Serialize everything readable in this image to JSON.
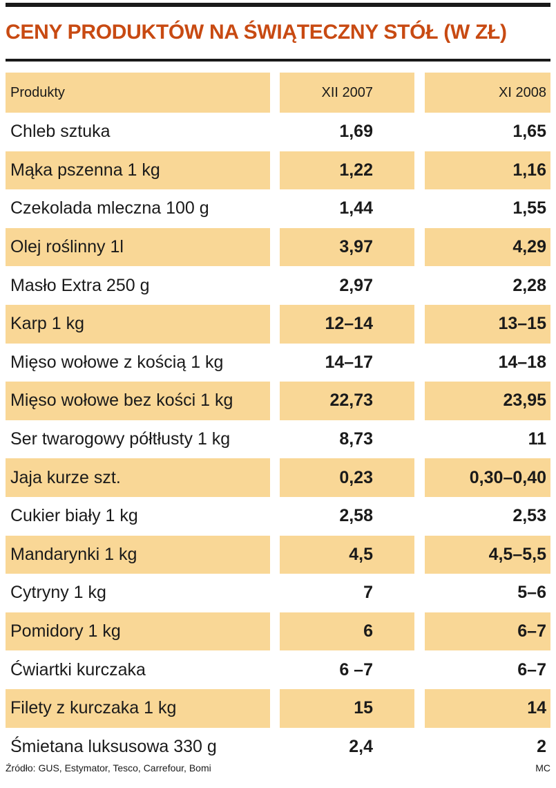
{
  "title": "CENY PRODUKTÓW NA ŚWIĄTECZNY STÓŁ (W ZŁ)",
  "header": [
    "Produkty",
    "XII 2007",
    "XI 2008"
  ],
  "rows": [
    [
      "Chleb sztuka",
      "1,69",
      "1,65"
    ],
    [
      "Mąka pszenna 1 kg",
      "1,22",
      "1,16"
    ],
    [
      "Czekolada mleczna 100 g",
      "1,44",
      "1,55"
    ],
    [
      "Olej roślinny 1l",
      "3,97",
      "4,29"
    ],
    [
      "Masło Extra 250 g",
      "2,97",
      "2,28"
    ],
    [
      "Karp 1 kg",
      "12–14",
      "13–15"
    ],
    [
      "Mięso wołowe z kością 1 kg",
      "14–17",
      "14–18"
    ],
    [
      "Mięso wołowe bez kości 1 kg",
      "22,73",
      "23,95"
    ],
    [
      "Ser twarogowy półtłusty 1 kg",
      "8,73",
      "11"
    ],
    [
      "Jaja kurze szt.",
      "0,23",
      "0,30–0,40"
    ],
    [
      "Cukier biały 1 kg",
      "2,58",
      "2,53"
    ],
    [
      "Mandarynki 1 kg",
      "4,5",
      "4,5–5,5"
    ],
    [
      "Cytryny 1 kg",
      "7",
      "5–6"
    ],
    [
      "Pomidory 1 kg",
      "6",
      "6–7"
    ],
    [
      "Ćwiartki kurczaka",
      "6 –7",
      "6–7"
    ],
    [
      "Filety z kurczaka 1 kg",
      "15",
      "14"
    ],
    [
      "Śmietana luksusowa 330 g",
      "2,4",
      "2"
    ]
  ],
  "source": "Źródło: GUS, Estymator, Tesco, Carrefour, Bomi",
  "credit": "MC",
  "colors": {
    "title": "#c84a12",
    "shade": "#f9d796",
    "rule": "#1a1a1a"
  },
  "chart_data": {
    "type": "table",
    "title": "CENY PRODUKTÓW NA ŚWIĄTECZNY STÓŁ (W ZŁ)",
    "columns": [
      "Produkty",
      "XII 2007",
      "XI 2008"
    ],
    "rows": [
      [
        "Chleb sztuka",
        "1,69",
        "1,65"
      ],
      [
        "Mąka pszenna 1 kg",
        "1,22",
        "1,16"
      ],
      [
        "Czekolada mleczna 100 g",
        "1,44",
        "1,55"
      ],
      [
        "Olej roślinny 1l",
        "3,97",
        "4,29"
      ],
      [
        "Masło Extra 250 g",
        "2,97",
        "2,28"
      ],
      [
        "Karp 1 kg",
        "12–14",
        "13–15"
      ],
      [
        "Mięso wołowe z kością 1 kg",
        "14–17",
        "14–18"
      ],
      [
        "Mięso wołowe bez kości 1 kg",
        "22,73",
        "23,95"
      ],
      [
        "Ser twarogowy półtłusty 1 kg",
        "8,73",
        "11"
      ],
      [
        "Jaja kurze szt.",
        "0,23",
        "0,30–0,40"
      ],
      [
        "Cukier biały 1 kg",
        "2,58",
        "2,53"
      ],
      [
        "Mandarynki 1 kg",
        "4,5",
        "4,5–5,5"
      ],
      [
        "Cytryny 1 kg",
        "7",
        "5–6"
      ],
      [
        "Pomidory 1 kg",
        "6",
        "6–7"
      ],
      [
        "Ćwiartki kurczaka",
        "6 –7",
        "6–7"
      ],
      [
        "Filety z kurczaka 1 kg",
        "15",
        "14"
      ],
      [
        "Śmietana luksusowa 330 g",
        "2,4",
        "2"
      ]
    ]
  }
}
